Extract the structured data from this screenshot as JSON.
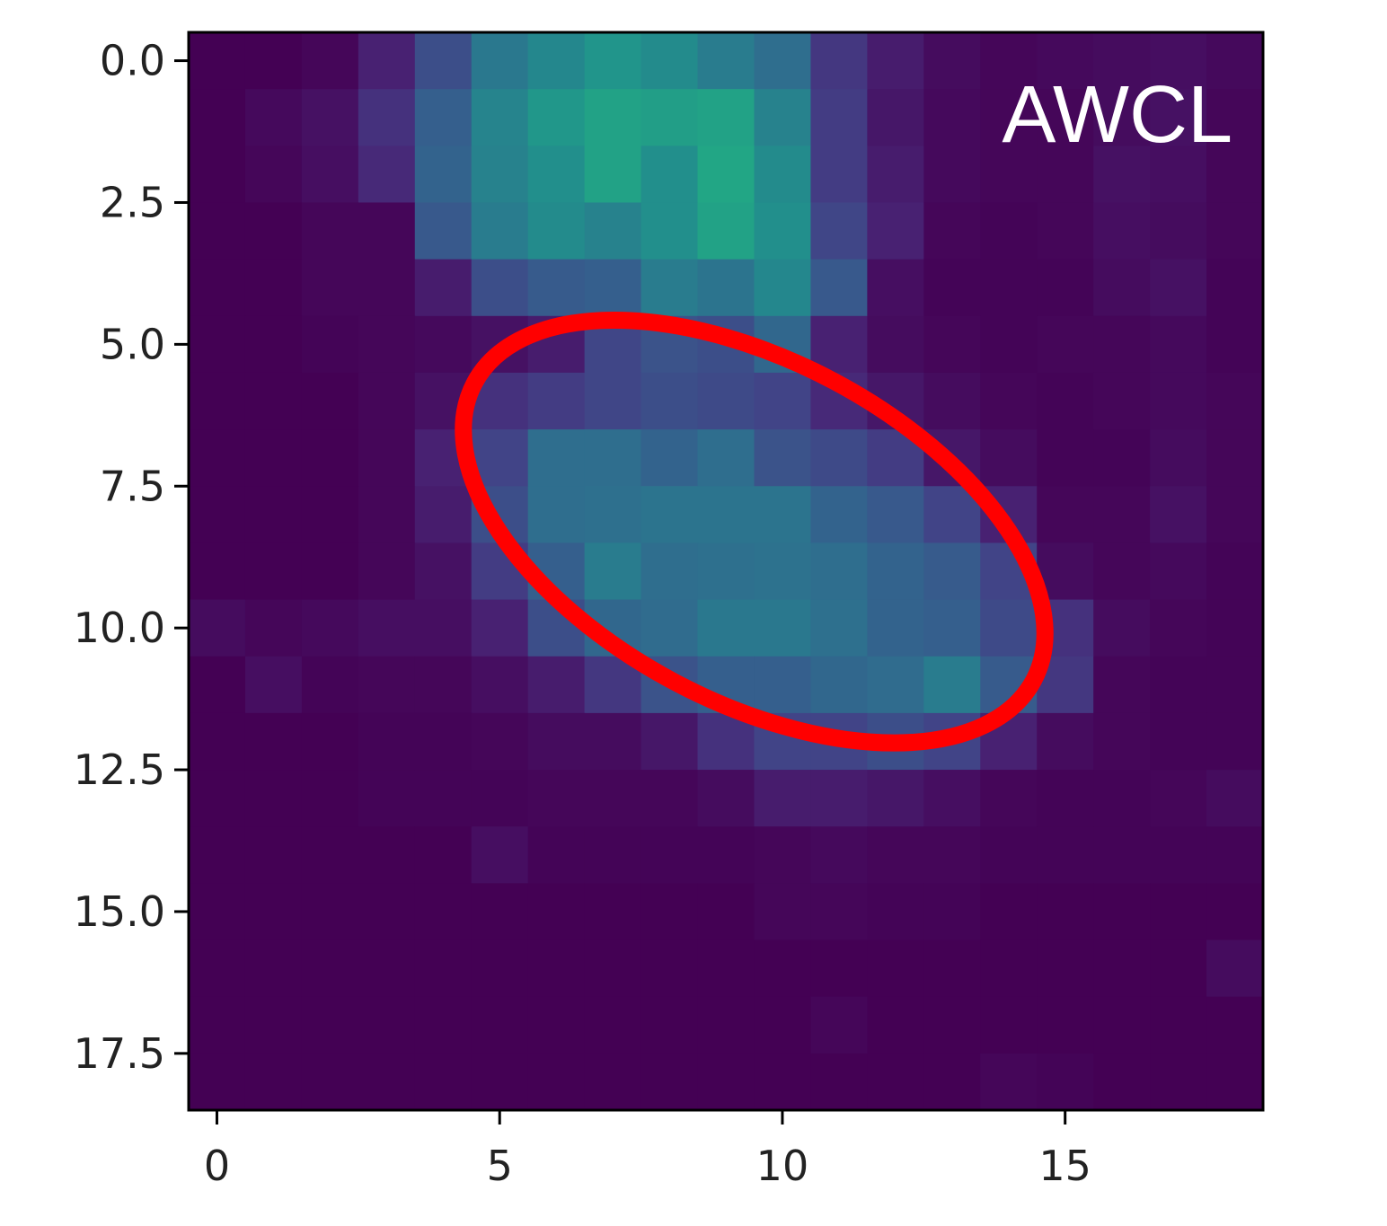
{
  "chart_data": {
    "type": "heatmap",
    "colormap": "viridis",
    "shape": [
      19,
      19
    ],
    "xlim": [
      -0.5,
      18.5
    ],
    "ylim": [
      18.5,
      -0.5
    ],
    "x_ticks": [
      0,
      5,
      10,
      15
    ],
    "x_tick_labels": [
      "0",
      "5",
      "10",
      "15"
    ],
    "y_ticks": [
      0,
      2.5,
      5,
      7.5,
      10,
      12.5,
      15,
      17.5
    ],
    "y_tick_labels": [
      "0.0",
      "2.5",
      "5.0",
      "7.5",
      "10.0",
      "12.5",
      "15.0",
      "17.5"
    ],
    "annotation": {
      "text": "AWCL",
      "color": "#ffffff"
    },
    "highlight": {
      "shape": "ellipse",
      "color": "#ff0000",
      "center": [
        9.5,
        8.3
      ],
      "semi_axes": [
        5.6,
        3.0
      ],
      "angle_deg": 28
    },
    "values": [
      [
        0.0,
        0.0,
        0.02,
        0.12,
        0.3,
        0.5,
        0.58,
        0.65,
        0.6,
        0.52,
        0.45,
        0.2,
        0.1,
        0.04,
        0.02,
        0.03,
        0.04,
        0.05,
        0.03
      ],
      [
        0.0,
        0.03,
        0.06,
        0.18,
        0.38,
        0.56,
        0.66,
        0.72,
        0.7,
        0.72,
        0.55,
        0.22,
        0.08,
        0.03,
        0.02,
        0.02,
        0.04,
        0.06,
        0.02
      ],
      [
        0.0,
        0.02,
        0.05,
        0.15,
        0.4,
        0.55,
        0.62,
        0.72,
        0.62,
        0.74,
        0.6,
        0.22,
        0.1,
        0.03,
        0.02,
        0.02,
        0.06,
        0.05,
        0.02
      ],
      [
        0.0,
        0.0,
        0.02,
        0.02,
        0.35,
        0.52,
        0.6,
        0.55,
        0.62,
        0.72,
        0.62,
        0.26,
        0.12,
        0.02,
        0.01,
        0.02,
        0.05,
        0.04,
        0.02
      ],
      [
        0.0,
        0.0,
        0.02,
        0.02,
        0.1,
        0.3,
        0.36,
        0.38,
        0.52,
        0.48,
        0.58,
        0.35,
        0.05,
        0.01,
        0.01,
        0.01,
        0.04,
        0.06,
        0.01
      ],
      [
        0.0,
        0.0,
        0.01,
        0.02,
        0.03,
        0.06,
        0.1,
        0.26,
        0.32,
        0.3,
        0.42,
        0.12,
        0.04,
        0.02,
        0.01,
        0.02,
        0.02,
        0.03,
        0.01
      ],
      [
        0.0,
        0.0,
        0.0,
        0.02,
        0.06,
        0.18,
        0.22,
        0.26,
        0.3,
        0.28,
        0.25,
        0.15,
        0.08,
        0.04,
        0.02,
        0.01,
        0.02,
        0.03,
        0.02
      ],
      [
        0.0,
        0.0,
        0.0,
        0.02,
        0.12,
        0.25,
        0.45,
        0.45,
        0.4,
        0.45,
        0.32,
        0.28,
        0.22,
        0.08,
        0.04,
        0.01,
        0.01,
        0.04,
        0.02
      ],
      [
        0.0,
        0.0,
        0.0,
        0.02,
        0.1,
        0.3,
        0.45,
        0.46,
        0.48,
        0.48,
        0.48,
        0.4,
        0.35,
        0.25,
        0.12,
        0.02,
        0.02,
        0.06,
        0.02
      ],
      [
        0.0,
        0.0,
        0.0,
        0.02,
        0.06,
        0.22,
        0.38,
        0.52,
        0.45,
        0.46,
        0.47,
        0.45,
        0.4,
        0.36,
        0.25,
        0.04,
        0.02,
        0.03,
        0.01
      ],
      [
        0.04,
        0.02,
        0.03,
        0.05,
        0.05,
        0.12,
        0.3,
        0.42,
        0.44,
        0.5,
        0.5,
        0.46,
        0.4,
        0.38,
        0.28,
        0.18,
        0.04,
        0.02,
        0.01
      ],
      [
        0.0,
        0.05,
        0.01,
        0.02,
        0.02,
        0.05,
        0.1,
        0.2,
        0.32,
        0.38,
        0.38,
        0.42,
        0.44,
        0.52,
        0.36,
        0.2,
        0.02,
        0.01,
        0.01
      ],
      [
        0.0,
        0.0,
        0.0,
        0.01,
        0.01,
        0.02,
        0.04,
        0.04,
        0.08,
        0.18,
        0.25,
        0.25,
        0.3,
        0.25,
        0.12,
        0.04,
        0.02,
        0.01,
        0.01
      ],
      [
        0.0,
        0.0,
        0.0,
        0.01,
        0.01,
        0.01,
        0.02,
        0.02,
        0.02,
        0.04,
        0.1,
        0.1,
        0.08,
        0.05,
        0.02,
        0.01,
        0.01,
        0.02,
        0.04
      ],
      [
        0.0,
        0.0,
        0.0,
        0.0,
        0.0,
        0.05,
        0.01,
        0.01,
        0.01,
        0.01,
        0.02,
        0.03,
        0.02,
        0.02,
        0.01,
        0.01,
        0.01,
        0.01,
        0.01
      ],
      [
        0.0,
        0.0,
        0.0,
        0.0,
        0.0,
        0.0,
        0.0,
        0.0,
        0.0,
        0.0,
        0.02,
        0.02,
        0.01,
        0.01,
        0.0,
        0.0,
        0.0,
        0.0,
        0.0
      ],
      [
        0.0,
        0.0,
        0.0,
        0.0,
        0.0,
        0.0,
        0.0,
        0.0,
        0.0,
        0.0,
        0.0,
        0.0,
        0.0,
        0.0,
        0.0,
        0.0,
        0.0,
        0.0,
        0.04
      ],
      [
        0.0,
        0.0,
        0.0,
        0.0,
        0.0,
        0.0,
        0.0,
        0.0,
        0.0,
        0.0,
        0.0,
        0.02,
        0.0,
        0.0,
        0.0,
        0.0,
        0.0,
        0.0,
        0.0
      ],
      [
        0.0,
        0.0,
        0.0,
        0.0,
        0.0,
        0.0,
        0.0,
        0.0,
        0.0,
        0.0,
        0.0,
        0.0,
        0.0,
        0.0,
        0.02,
        0.01,
        0.0,
        0.0,
        0.0
      ]
    ]
  }
}
